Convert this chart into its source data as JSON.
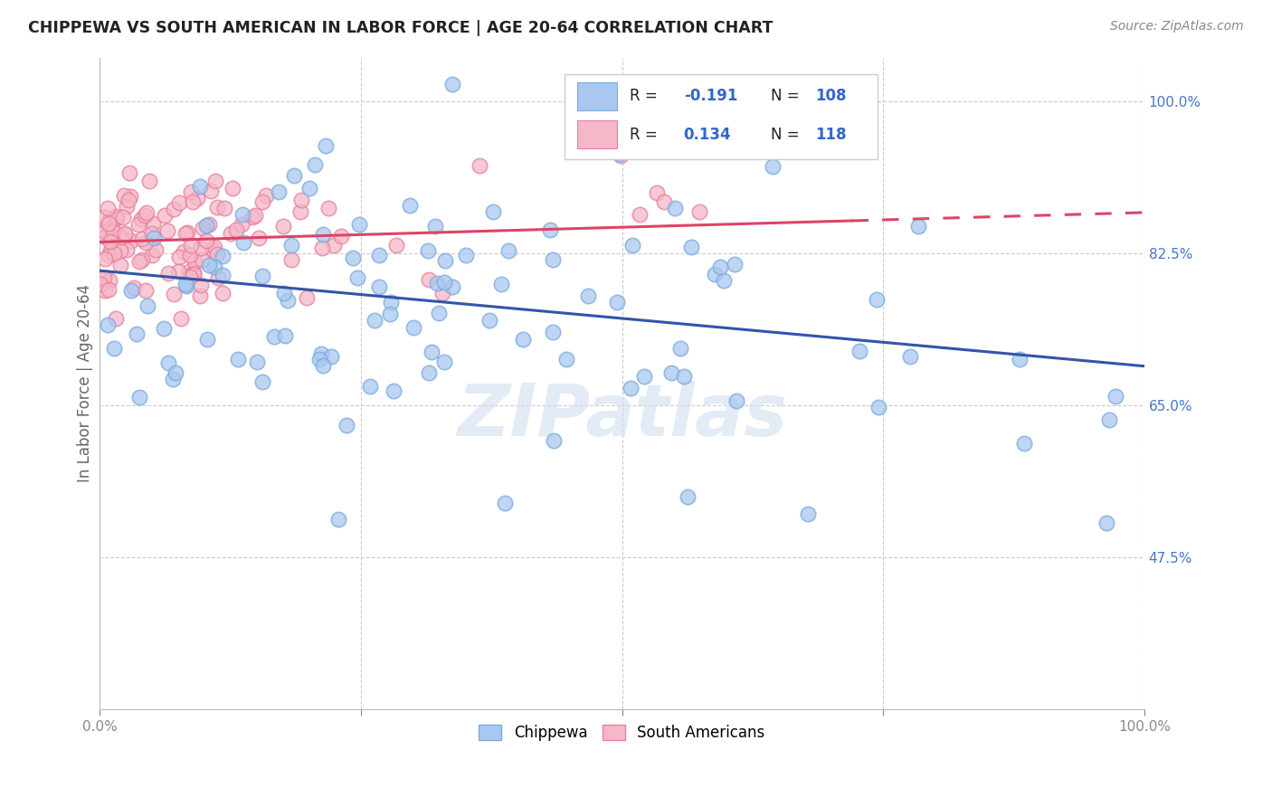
{
  "title": "CHIPPEWA VS SOUTH AMERICAN IN LABOR FORCE | AGE 20-64 CORRELATION CHART",
  "source": "Source: ZipAtlas.com",
  "ylabel": "In Labor Force | Age 20-64",
  "xlim": [
    0.0,
    1.0
  ],
  "ylim": [
    0.3,
    1.05
  ],
  "ytick_positions": [
    0.475,
    0.65,
    0.825,
    1.0
  ],
  "chippewa_color": "#a8c8f0",
  "chippewa_edge_color": "#7aabde",
  "south_american_color": "#f5b8c8",
  "south_american_edge_color": "#e8809a",
  "chippewa_line_color": "#3355aa",
  "south_american_line_color": "#dd4466",
  "legend_R_chippewa": "-0.191",
  "legend_N_chippewa": "108",
  "legend_R_south": "0.134",
  "legend_N_south": "118",
  "watermark": "ZIPatlas",
  "background_color": "#ffffff",
  "grid_color": "#cccccc",
  "chip_line_x0": 0.0,
  "chip_line_x1": 1.0,
  "chip_line_y0": 0.805,
  "chip_line_y1": 0.695,
  "south_line_x0": 0.0,
  "south_line_x1": 1.0,
  "south_line_y0": 0.838,
  "south_line_y1": 0.872,
  "south_line_solid_end": 0.72
}
